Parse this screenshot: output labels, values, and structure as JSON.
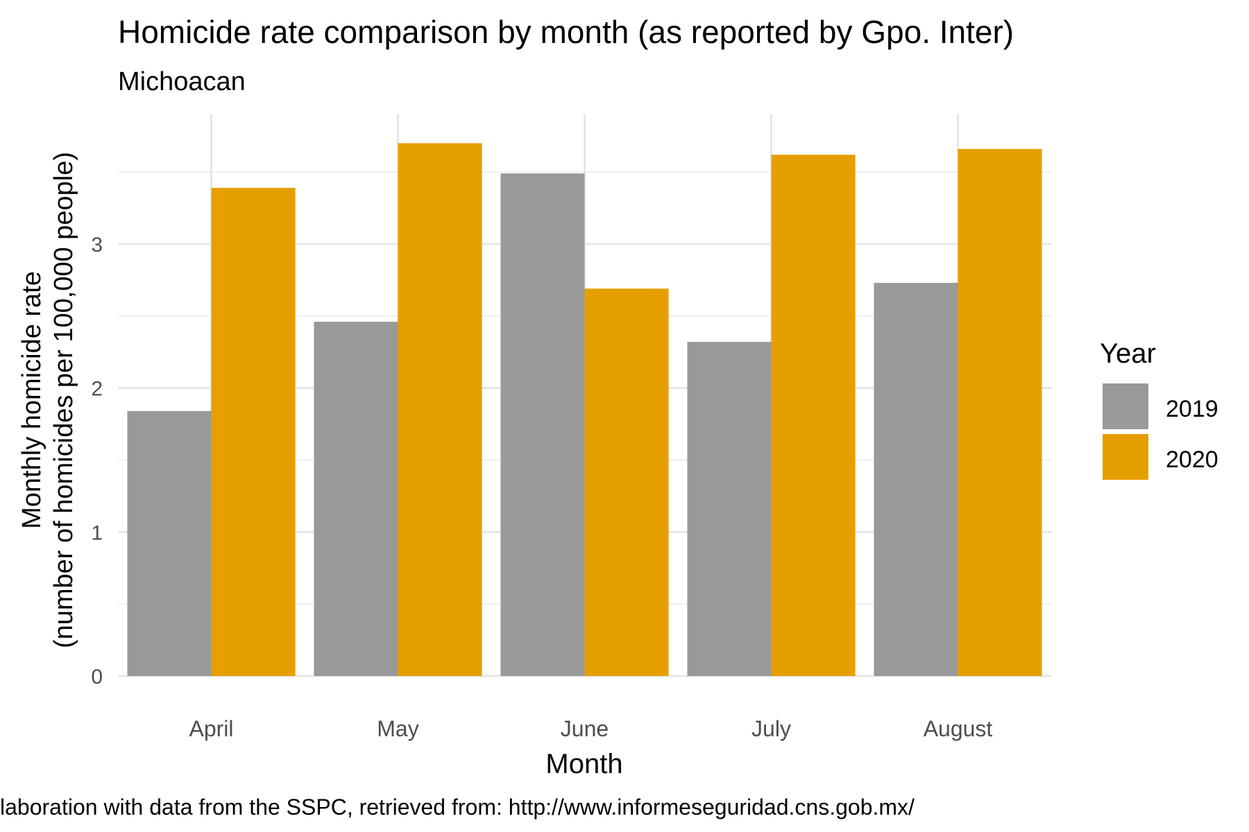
{
  "chart_data": {
    "type": "bar",
    "title": "Homicide rate comparison by month (as reported by Gpo. Inter)",
    "subtitle": "Michoacan",
    "xlabel": "Month",
    "ylabel_line1": "Monthly homicide rate",
    "ylabel_line2": "(number of homicides per 100,000 people)",
    "caption": "laboration with data from the SSPC, retrieved from: http://www.informeseguridad.cns.gob.mx/",
    "categories": [
      "April",
      "May",
      "June",
      "July",
      "August"
    ],
    "series": [
      {
        "name": "2019",
        "color": "#999999",
        "values": [
          1.84,
          2.46,
          3.49,
          2.32,
          2.73
        ]
      },
      {
        "name": "2020",
        "color": "#E69F00",
        "values": [
          3.39,
          3.7,
          2.69,
          3.62,
          3.66
        ]
      }
    ],
    "ylim": [
      0,
      3.9
    ],
    "yticks": [
      0,
      1,
      2,
      3
    ],
    "grid": true,
    "legend": {
      "title": "Year",
      "position": "right"
    }
  }
}
